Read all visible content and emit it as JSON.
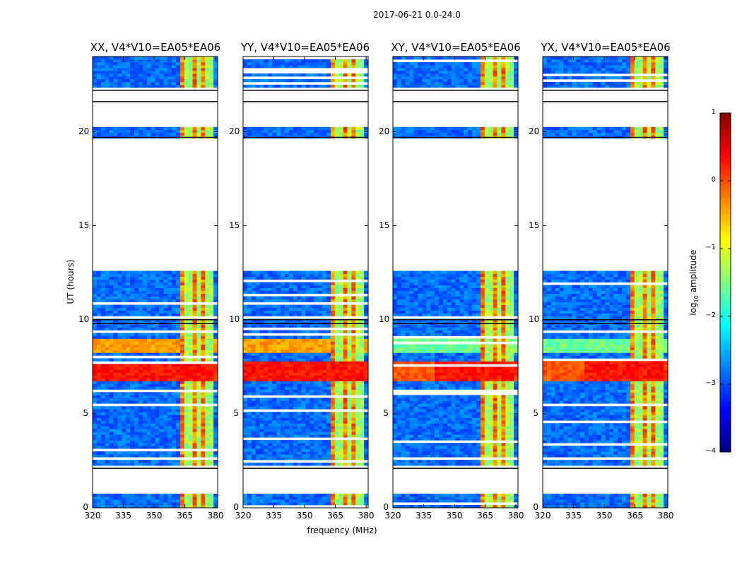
{
  "suptitle": "2017-06-21 0.0-24.0",
  "chart_data": {
    "type": "heatmap",
    "xlabel": "frequency (MHz)",
    "ylabel": "UT (hours)",
    "xlim": [
      320,
      381
    ],
    "ylim": [
      0,
      24
    ],
    "xticks": [
      "320",
      "335",
      "350",
      "365",
      "380"
    ],
    "xtick_values": [
      320,
      335,
      350,
      365,
      380
    ],
    "yticks": [
      "0",
      "5",
      "10",
      "15",
      "20"
    ],
    "ytick_values": [
      0,
      5,
      10,
      15,
      20
    ],
    "colorbar": {
      "label_prefix": "log",
      "label_sub": "10",
      "label_suffix": " amplitude",
      "range": [
        -4,
        1
      ],
      "ticks": [
        "1",
        "0",
        "−1",
        "−2",
        "−3",
        "−4"
      ],
      "tick_values": [
        1,
        0,
        -1,
        -2,
        -3,
        -4
      ],
      "colormap": "jet"
    },
    "panels": [
      {
        "title": "XX, V4*V10=EA05*EA06",
        "pol": "XX"
      },
      {
        "title": "YY, V4*V10=EA05*EA06",
        "pol": "YY"
      },
      {
        "title": "XY, V4*V10=EA05*EA06",
        "pol": "XY"
      },
      {
        "title": "YX, V4*V10=EA05*EA06",
        "pol": "YX"
      }
    ],
    "data_hours": [
      [
        0.0,
        0.8
      ],
      [
        2.3,
        12.6
      ],
      [
        19.6,
        20.2
      ],
      [
        22.4,
        24.0
      ]
    ],
    "flagged_hours": [
      [
        0.8,
        2.3
      ],
      [
        12.6,
        19.6
      ],
      [
        20.2,
        22.4
      ]
    ],
    "rfi_band_mhz": [
      363,
      378
    ],
    "strong_emission_hours": [
      6.8,
      7.8
    ],
    "moderate_emission_hours": [
      8.2,
      9.0
    ]
  }
}
